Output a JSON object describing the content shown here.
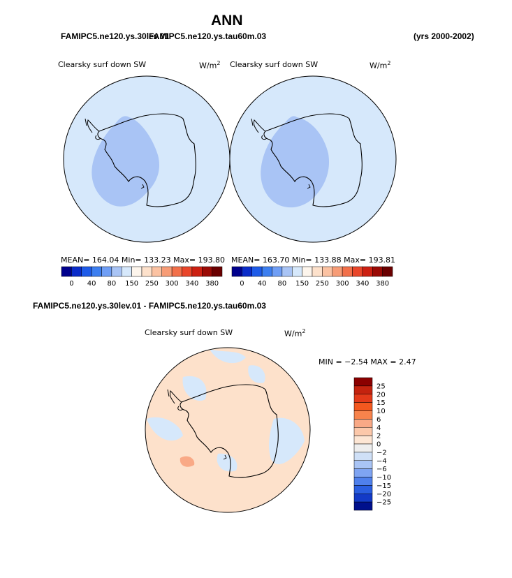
{
  "figure": {
    "title": "ANN",
    "case_header": "FAMIPC5.ne120.ys.30lev.01",
    "case_header_overlap": "FAMIPC5.ne120.ys.tau60m.03",
    "years": "(yrs 2000-2002)",
    "diff_header": "FAMIPC5.ne120.ys.30lev.01 - FAMIPC5.ne120.ys.tau60m.03"
  },
  "panels": [
    {
      "id": "left",
      "label": "Clearsky surf down SW",
      "units": "W/m",
      "units_sup": "2",
      "stats": "MEAN= 164.04  Min= 133.23  Max= 193.80"
    },
    {
      "id": "right",
      "label": "Clearsky surf down SW",
      "units": "W/m",
      "units_sup": "2",
      "stats": "MEAN= 163.70  Min= 133.88  Max= 193.81"
    },
    {
      "id": "diff",
      "label": "Clearsky surf down SW",
      "units": "W/m",
      "units_sup": "2",
      "stats": "MIN =  −2.54 MAX =   2.47"
    }
  ],
  "colors": {
    "bg_field": "#d6e8fb",
    "mid_field": "#a9c4f5",
    "diff_pos": "#fde1cb",
    "diff_neg": "#d6e8fb",
    "diff_hot": "#f7a585"
  },
  "chart_data": [
    {
      "type": "heatmap",
      "title": "Clearsky surf down SW",
      "projection": "south polar stereographic",
      "units": "W/m2",
      "mean": 164.04,
      "min": 133.23,
      "max": 193.8,
      "colorbar_levels": [
        0,
        40,
        80,
        150,
        250,
        300,
        340,
        380
      ],
      "colorbar_colors": [
        "#00008c",
        "#0a2cc9",
        "#1e5be8",
        "#3d7ff0",
        "#6f9ef5",
        "#a9c4f5",
        "#d6e8fb",
        "#fdf5ec",
        "#fde1cb",
        "#fbc2a2",
        "#f79c76",
        "#f2704a",
        "#e9462a",
        "#cc2012",
        "#9a0a05",
        "#6a0000"
      ]
    },
    {
      "type": "heatmap",
      "title": "Clearsky surf down SW",
      "projection": "south polar stereographic",
      "units": "W/m2",
      "mean": 163.7,
      "min": 133.88,
      "max": 193.81,
      "colorbar_levels": [
        0,
        40,
        80,
        150,
        250,
        300,
        340,
        380
      ],
      "colorbar_colors": [
        "#00008c",
        "#0a2cc9",
        "#1e5be8",
        "#3d7ff0",
        "#6f9ef5",
        "#a9c4f5",
        "#d6e8fb",
        "#fdf5ec",
        "#fde1cb",
        "#fbc2a2",
        "#f79c76",
        "#f2704a",
        "#e9462a",
        "#cc2012",
        "#9a0a05",
        "#6a0000"
      ]
    },
    {
      "type": "heatmap",
      "title": "Clearsky surf down SW",
      "projection": "south polar stereographic",
      "units": "W/m2",
      "min": -2.54,
      "max": 2.47,
      "colorbar_levels": [
        25,
        20,
        15,
        10,
        6,
        4,
        2,
        0,
        -2,
        -4,
        -6,
        -10,
        -15,
        -20,
        -25
      ],
      "colorbar_labels": [
        "25",
        "20",
        "15",
        "10",
        "6",
        "4",
        "2",
        "0",
        "−2",
        "−4",
        "−6",
        "−10",
        "−15",
        "−20",
        "−25"
      ],
      "colorbar_colors": [
        "#8b0000",
        "#c4230f",
        "#e33a1a",
        "#f3581f",
        "#f7834c",
        "#f9a986",
        "#fcc8aa",
        "#fde6d4",
        "#eeeeee",
        "#cfe0f7",
        "#a9c4f5",
        "#7fa4f2",
        "#4f80ec",
        "#2a5ee0",
        "#133ac7",
        "#00108c"
      ]
    }
  ]
}
